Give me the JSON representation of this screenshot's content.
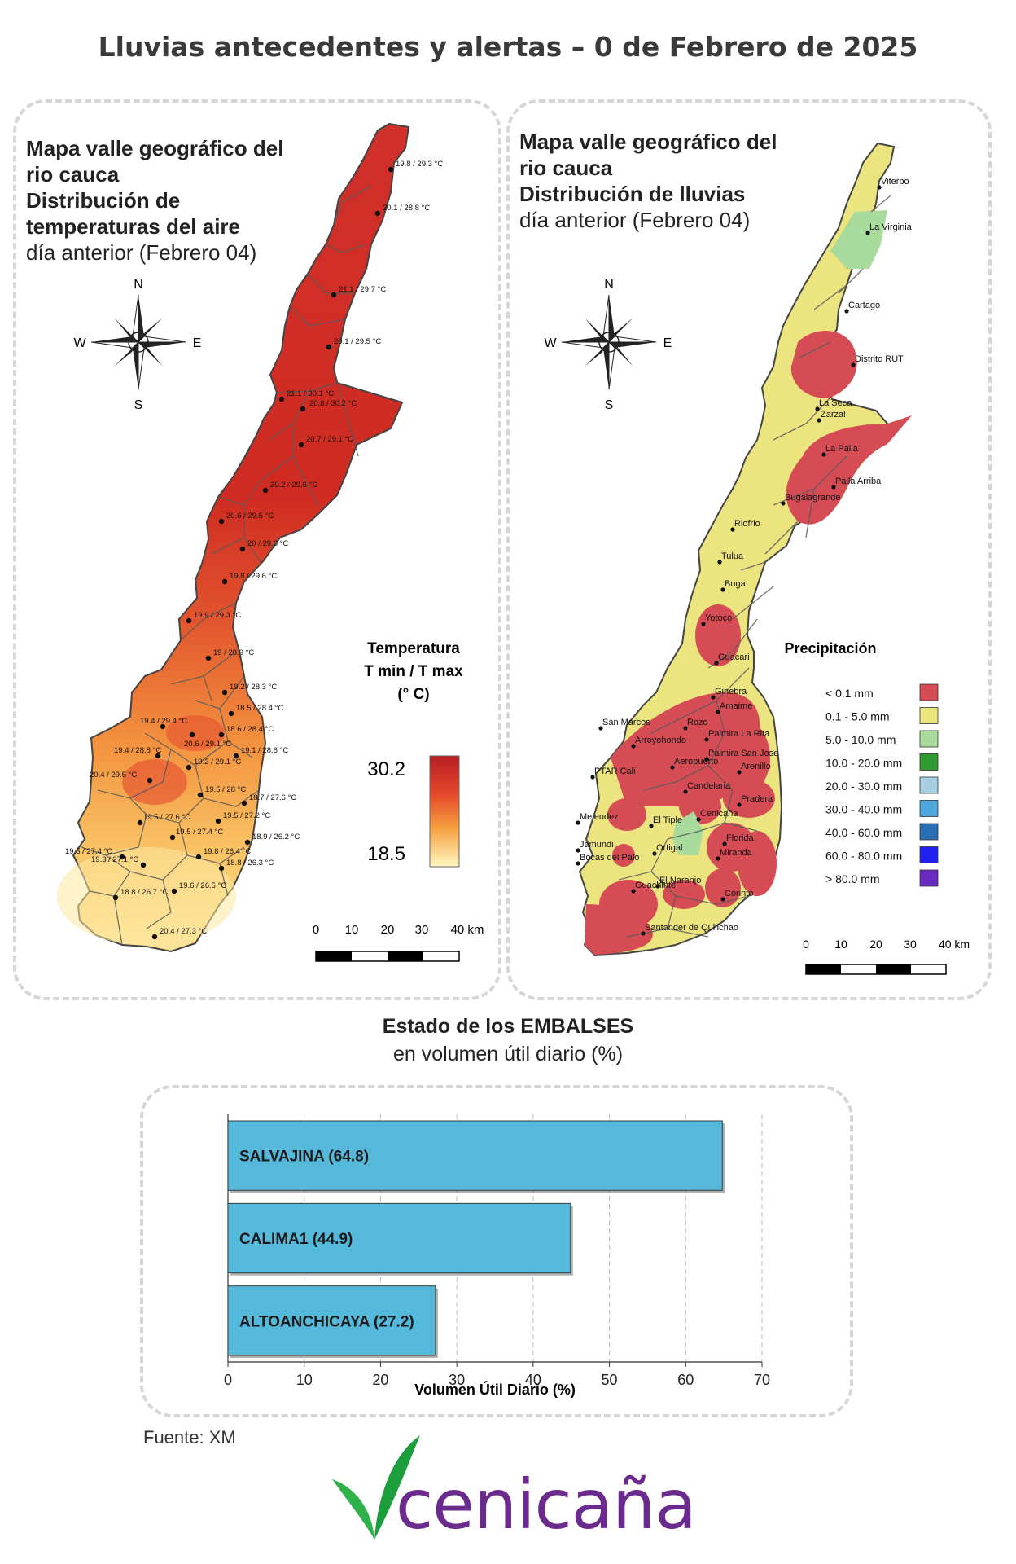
{
  "page": {
    "title": "Lluvias antecedentes y alertas – 0 de Febrero de 2025",
    "source": "Fuente: XM",
    "logo_text": "cenicaña"
  },
  "temp_map": {
    "head_line1": "Mapa valle geográfico del",
    "head_line2": "rio cauca",
    "head_line3": "Distribución de",
    "head_line4": "temperaturas del aire",
    "head_line5": "día anterior (Febrero 04)",
    "compass": {
      "n": "N",
      "s": "S",
      "e": "E",
      "w": "W"
    },
    "legend": {
      "title1": "Temperatura",
      "title2": "T min / T max",
      "title3": "(° C)",
      "max": "30.2",
      "min": "18.5"
    },
    "scale": {
      "labels": [
        "0",
        "10",
        "20",
        "30",
        "40 km"
      ]
    },
    "stations": [
      "19.8 / 29.3 °C",
      "20.1 / 28.8 °C",
      "21.1 / 29.7 °C",
      "20.1 / 29.5 °C",
      "21.1 / 30.1 °C",
      "20.8 / 30.2 °C",
      "20.7 / 29.1 °C",
      "20.2 / 29.6 °C",
      "20.6 / 29.5 °C",
      "20 / 29.6 °C",
      "19.8 / 29.6 °C",
      "19.9 / 29.3 °C",
      "19 / 28.9 °C",
      "19.2 / 28.3 °C",
      "18.5 / 28.4 °C",
      "19.4 / 29.4 °C",
      "20.6 / 29.1 °C",
      "18.6 / 28.4 °C",
      "19.4 / 28.8 °C",
      "19.1 / 28.6 °C",
      "19.2 / 29.1 °C",
      "20.4 / 29.5 °C",
      "19.5 / 28 °C",
      "18.7 / 27.6 °C",
      "19.5 / 27.6 °C",
      "19.5 / 27.2 °C",
      "19.5 / 27.4 °C",
      "18.9 / 26.2 °C",
      "19.5 / 27.4 °C",
      "19.8 / 26.4 °C",
      "19.3 / 27.1 °C",
      "18.8 / 26.3 °C",
      "19.6 / 26.5 °C",
      "18.8 / 26.7 °C",
      "20.4 / 27.3 °C"
    ]
  },
  "rain_map": {
    "head_line1": "Mapa valle geográfico del",
    "head_line2": "rio cauca",
    "head_line3": "Distribución de lluvias",
    "head_line4": "día anterior (Febrero 04)",
    "compass": {
      "n": "N",
      "s": "S",
      "e": "E",
      "w": "W"
    },
    "legend_title": "Precipitación",
    "legend": [
      {
        "label": "< 0.1 mm",
        "color": "#d64c55"
      },
      {
        "label": "0.1 - 5.0 mm",
        "color": "#ece47f"
      },
      {
        "label": "5.0 - 10.0 mm",
        "color": "#a9dc9c"
      },
      {
        "label": "10.0 - 20.0 mm",
        "color": "#2f9a2f"
      },
      {
        "label": "20.0 - 30.0 mm",
        "color": "#a6cfe1"
      },
      {
        "label": "30.0 - 40.0 mm",
        "color": "#4ea7dc"
      },
      {
        "label": "40.0 - 60.0 mm",
        "color": "#2a6fb3"
      },
      {
        "label": "60.0 - 80.0 mm",
        "color": "#2020f0"
      },
      {
        "label": "> 80.0 mm",
        "color": "#6a2cc0"
      }
    ],
    "scale": {
      "labels": [
        "0",
        "10",
        "20",
        "30",
        "40 km"
      ]
    },
    "towns": [
      "Viterbo",
      "La Virginia",
      "Cartago",
      "Distrito RUT",
      "La Seca",
      "Zarzal",
      "La Paila",
      "Paila Arriba",
      "Bugalagrande",
      "Riofrio",
      "Tulua",
      "Buga",
      "Yotoco",
      "Guacari",
      "Ginebra",
      "Amaime",
      "San Marcos",
      "Rozo",
      "Palmira La Rita",
      "Arroyohondo",
      "Palmira San Jose",
      "Aeropuerto",
      "Arenillo",
      "PTAR Cali",
      "Candelaria",
      "Pradera",
      "Cenicaña",
      "Melendez",
      "El Tiple",
      "Florida",
      "Jamundi",
      "Bocas del Palo",
      "Ortigal",
      "Miranda",
      "El Naranjo",
      "Guachinte",
      "Corinto",
      "Santander de Quilichao"
    ]
  },
  "reservoirs": {
    "title_bold": "Estado de los EMBALSES",
    "title_sub": "en volumen útil diario (%)",
    "chart_data": {
      "type": "bar",
      "orientation": "horizontal",
      "categories": [
        "SALVAJINA (64.8)",
        "CALIMA1 (44.9)",
        "ALTOANCHICAYA (27.2)"
      ],
      "values": [
        64.8,
        44.9,
        27.2
      ],
      "xlabel": "Volumen Útil Diario (%)",
      "xlim": [
        0,
        70
      ],
      "xticks": [
        "0",
        "10",
        "20",
        "30",
        "40",
        "50",
        "60",
        "70"
      ],
      "grid": true,
      "bar_color": "#55b9dc"
    }
  }
}
